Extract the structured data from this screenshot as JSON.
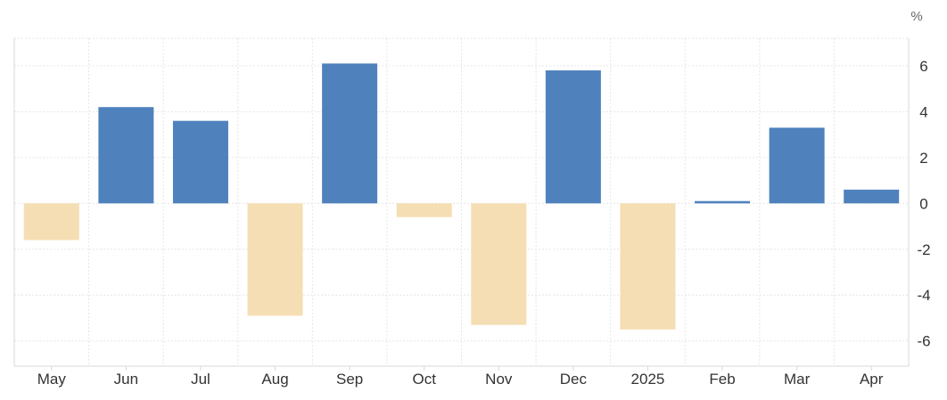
{
  "chart_data": {
    "type": "bar",
    "title": "",
    "xlabel": "",
    "ylabel": "",
    "unit": "%",
    "categories": [
      "May",
      "Jun",
      "Jul",
      "Aug",
      "Sep",
      "Oct",
      "Nov",
      "Dec",
      "2025",
      "Feb",
      "Mar",
      "Apr"
    ],
    "values": [
      -1.6,
      4.2,
      3.6,
      -4.9,
      6.1,
      -0.6,
      -5.3,
      5.8,
      -5.5,
      0.1,
      3.3,
      0.6
    ],
    "ylim": [
      -7.1,
      7.2
    ],
    "yticks": [
      6,
      4,
      2,
      0,
      -2,
      -4,
      -6
    ],
    "ytick_labels": [
      "6",
      "4",
      "2",
      "0",
      "-2",
      "-4",
      "-6"
    ],
    "grid": true,
    "legend": "none",
    "colors": {
      "positive": "#4f81bd",
      "negative": "#f5deb3",
      "grid": "#e6e6e6",
      "axis": "#d9d9d9",
      "text": "#333333"
    }
  }
}
